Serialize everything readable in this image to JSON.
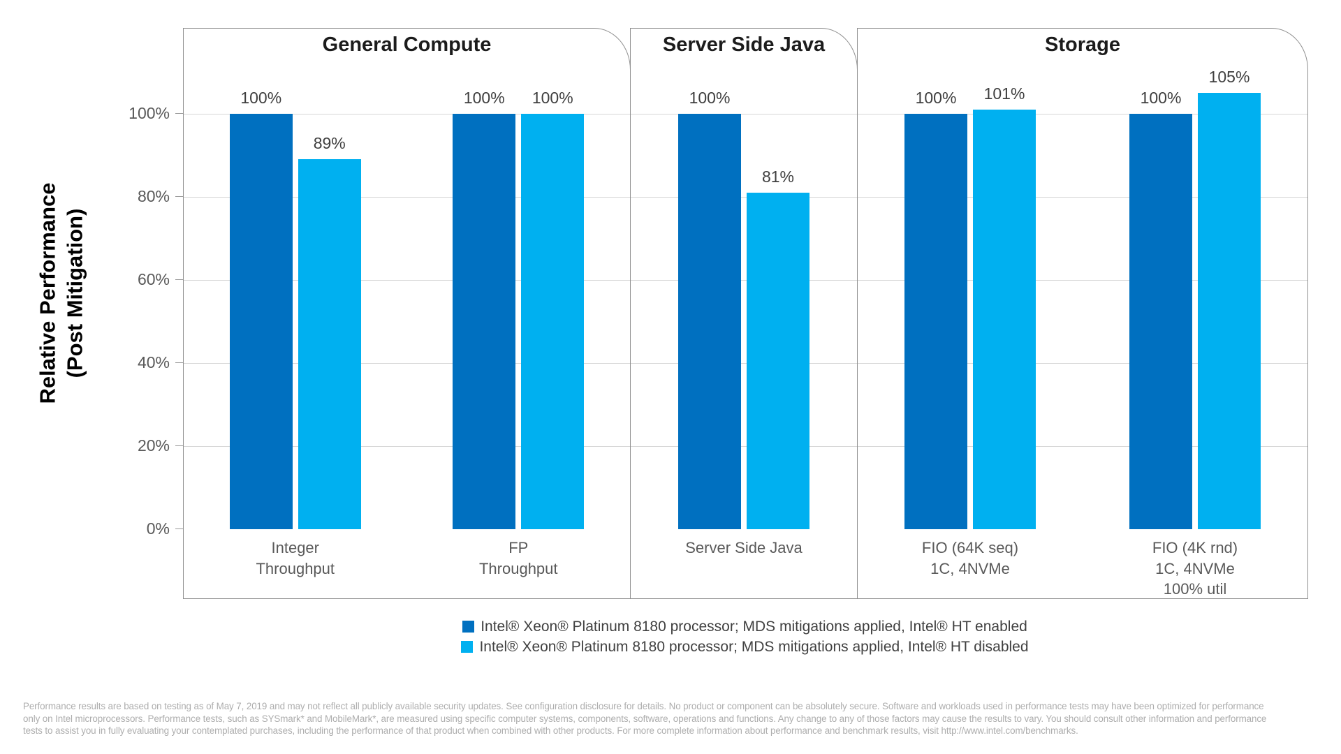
{
  "y_axis_title": "Relative Performance\n(Post Mitigation)",
  "chart_data": {
    "type": "bar",
    "title": "",
    "value_suffix": "%",
    "ytick_suffix": "%",
    "ylim": [
      0,
      120
    ],
    "yticks": [
      0,
      20,
      40,
      60,
      80,
      100
    ],
    "grid": "horizontal gridlines every 20%, light gray",
    "legend_position": "bottom center",
    "series": [
      {
        "key": "ht-enabled",
        "name": "Intel® Xeon® Platinum 8180 processor; MDS mitigations applied, Intel® HT enabled",
        "color": "#0070C0"
      },
      {
        "key": "ht-disabled",
        "name": "Intel® Xeon® Platinum 8180 processor; MDS mitigations applied, Intel® HT disabled",
        "color": "#00B0F0"
      }
    ],
    "panels": [
      {
        "title": "General Compute",
        "groups": [
          {
            "label": "Integer\nThroughput",
            "values": [
              100,
              89
            ]
          },
          {
            "label": "FP\nThroughput",
            "values": [
              100,
              100
            ]
          }
        ]
      },
      {
        "title": "Server Side Java",
        "groups": [
          {
            "label": "Server Side Java",
            "values": [
              100,
              81
            ]
          }
        ]
      },
      {
        "title": "Storage",
        "groups": [
          {
            "label": "FIO (64K seq)\n1C, 4NVMe",
            "values": [
              100,
              101
            ]
          },
          {
            "label": "FIO (4K rnd)\n1C, 4NVMe\n100% util",
            "values": [
              100,
              105
            ]
          }
        ]
      }
    ]
  },
  "footer": {
    "lines": [
      "Performance results are based on testing as of May 7, 2019 and may not reflect all publicly available security updates. See configuration disclosure for details. No product or component can be absolutely secure. Software and workloads used in performance tests may have been optimized for performance",
      "only on Intel microprocessors. Performance tests, such as SYSmark* and MobileMark*, are measured using specific computer systems, components, software, operations and functions.  Any change to any of those factors may cause the results to vary.  You should consult other information and performance",
      "tests to assist you in fully evaluating your contemplated purchases, including the performance of that product when combined with other products. For more complete information about performance and benchmark results, visit http://www.intel.com/benchmarks."
    ]
  }
}
